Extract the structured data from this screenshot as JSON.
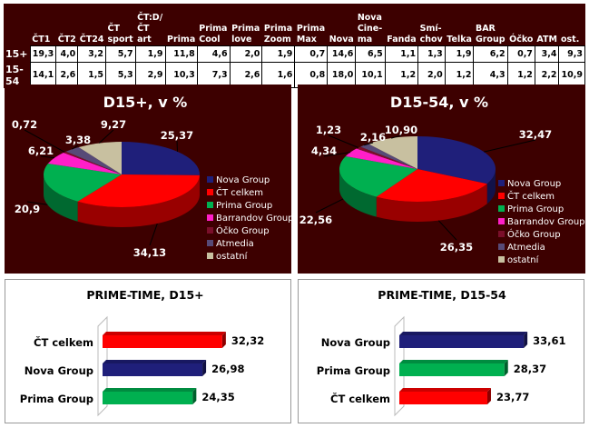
{
  "table": {
    "columns": [
      "",
      "ČT1",
      "ČT2",
      "ČT24",
      "ČT sport",
      "ČT:D/ ČT art",
      "Prima",
      "Prima Cool",
      "Prima love",
      "Prima Zoom",
      "Prima Max",
      "Nova",
      "Nova Cine-ma",
      "Fanda",
      "Smí-chov",
      "Telka",
      "BAR Group",
      "Óčko",
      "ATM",
      "ost."
    ],
    "rows": [
      {
        "label": "15+",
        "values": [
          "19,3",
          "4,0",
          "3,2",
          "5,7",
          "1,9",
          "11,8",
          "4,6",
          "2,0",
          "1,9",
          "0,7",
          "14,6",
          "6,5",
          "1,1",
          "1,3",
          "1,9",
          "6,2",
          "0,7",
          "3,4",
          "9,3"
        ]
      },
      {
        "label": "15-54",
        "values": [
          "14,1",
          "2,6",
          "1,5",
          "5,3",
          "2,9",
          "10,3",
          "7,3",
          "2,6",
          "1,6",
          "0,8",
          "18,0",
          "10,1",
          "1,2",
          "2,0",
          "1,2",
          "4,3",
          "1,2",
          "2,2",
          "10,9"
        ]
      }
    ]
  },
  "colors": {
    "Nova Group": "#1f1f7a",
    "ČT celkem": "#ff0000",
    "Prima Group": "#00b050",
    "Barrandov Group": "#ff1fc8",
    "Óčko Group": "#7a0f2a",
    "Atmedia": "#574a77",
    "ostatní": "#c8c0a0"
  },
  "chart_data": [
    {
      "type": "pie",
      "title": "D15+, v %",
      "legend": "right",
      "categories": [
        "Nova Group",
        "ČT celkem",
        "Prima Group",
        "Barrandov Group",
        "Óčko Group",
        "Atmedia",
        "ostatní"
      ],
      "values": [
        25.37,
        34.13,
        20.9,
        6.21,
        0.72,
        3.38,
        9.27
      ],
      "labels": [
        "25,37",
        "34,13",
        "20,9",
        "6,21",
        "0,72",
        "3,38",
        "9,27"
      ]
    },
    {
      "type": "pie",
      "title": "D15-54, v %",
      "legend": "right",
      "categories": [
        "Nova Group",
        "ČT celkem",
        "Prima Group",
        "Barrandov Group",
        "Óčko Group",
        "Atmedia",
        "ostatní"
      ],
      "values": [
        32.47,
        26.35,
        22.56,
        4.34,
        1.23,
        2.16,
        10.9
      ],
      "labels": [
        "32,47",
        "26,35",
        "22,56",
        "4,34",
        "1,23",
        "2,16",
        "10,90"
      ]
    },
    {
      "type": "bar",
      "orientation": "horizontal",
      "title": "PRIME-TIME, D15+",
      "categories": [
        "ČT celkem",
        "Nova Group",
        "Prima Group"
      ],
      "values": [
        32.32,
        26.98,
        24.35
      ],
      "labels": [
        "32,32",
        "26,98",
        "24,35"
      ]
    },
    {
      "type": "bar",
      "orientation": "horizontal",
      "title": "PRIME-TIME, D15-54",
      "categories": [
        "Nova Group",
        "Prima Group",
        "ČT celkem"
      ],
      "values": [
        33.61,
        28.37,
        23.77
      ],
      "labels": [
        "33,61",
        "28,37",
        "23,77"
      ]
    }
  ]
}
